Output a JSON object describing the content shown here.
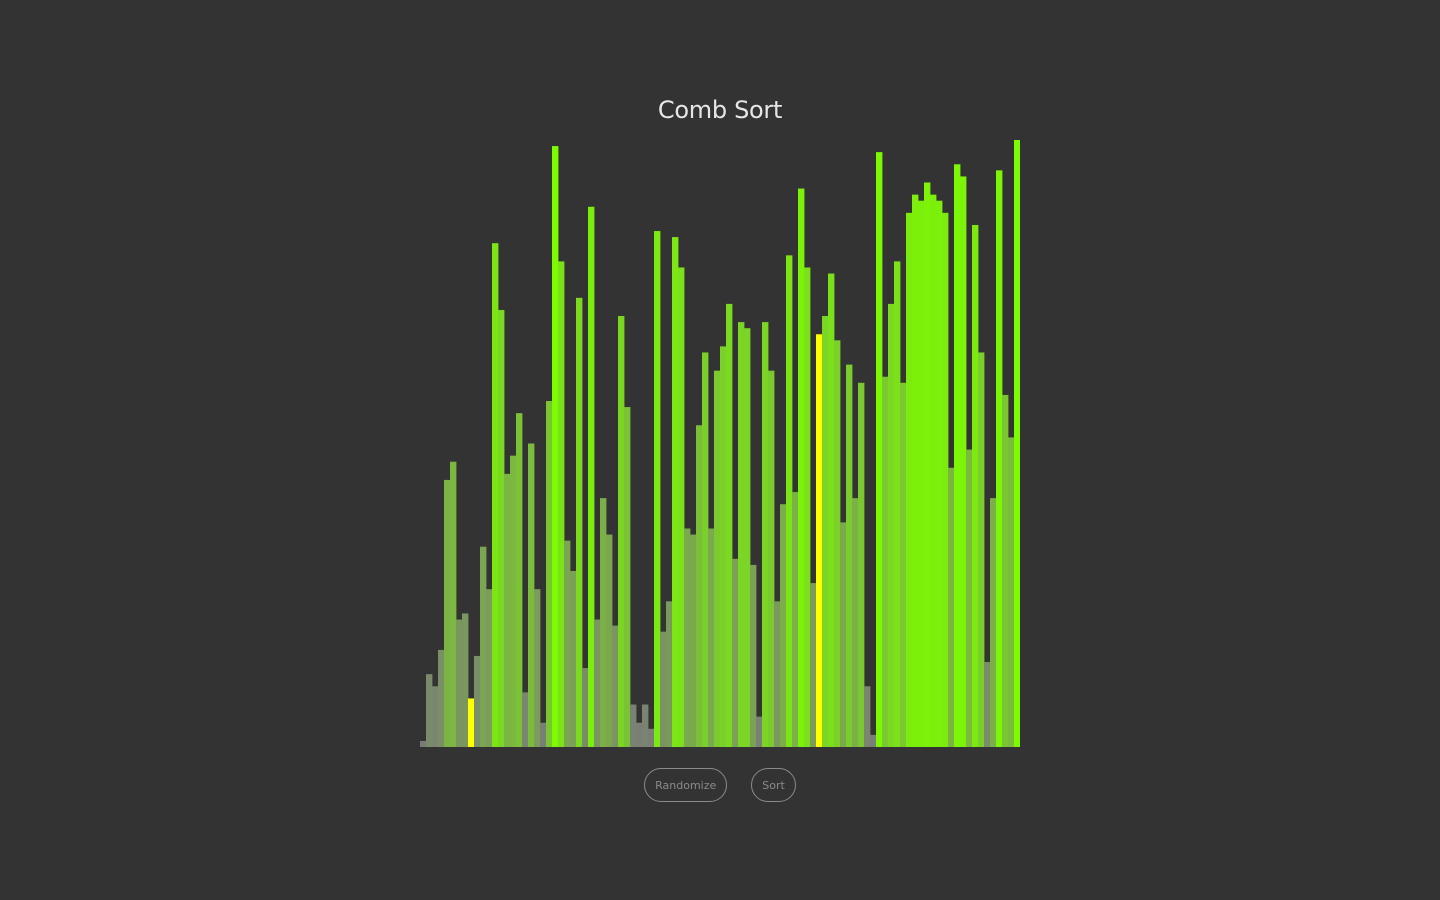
{
  "title": "Comb Sort",
  "buttons": {
    "randomize": "Randomize",
    "sort": "Sort"
  },
  "colors": {
    "background": "#333333",
    "grey_low": "#7a7a7a",
    "green_high": "#7cfc00",
    "highlight": "#ffff00"
  },
  "chart_data": {
    "type": "bar",
    "title": "Comb Sort",
    "xlabel": "",
    "ylabel": "",
    "ylim": [
      0,
      100
    ],
    "highlighted_indices": [
      8,
      66
    ],
    "values": [
      1,
      12,
      10,
      16,
      44,
      47,
      21,
      22,
      8,
      15,
      33,
      26,
      83,
      72,
      45,
      48,
      55,
      9,
      50,
      26,
      4,
      57,
      99,
      80,
      34,
      29,
      74,
      13,
      89,
      21,
      41,
      35,
      20,
      71,
      56,
      7,
      4,
      7,
      3,
      85,
      19,
      24,
      84,
      79,
      36,
      35,
      53,
      65,
      36,
      62,
      66,
      73,
      31,
      70,
      69,
      30,
      5,
      70,
      62,
      24,
      40,
      81,
      42,
      92,
      79,
      27,
      68,
      71,
      78,
      67,
      37,
      63,
      41,
      60,
      10,
      2,
      98,
      61,
      73,
      80,
      60,
      88,
      91,
      90,
      93,
      91,
      90,
      88,
      46,
      96,
      94,
      49,
      86,
      65,
      14,
      41,
      95,
      58,
      51,
      100
    ]
  }
}
